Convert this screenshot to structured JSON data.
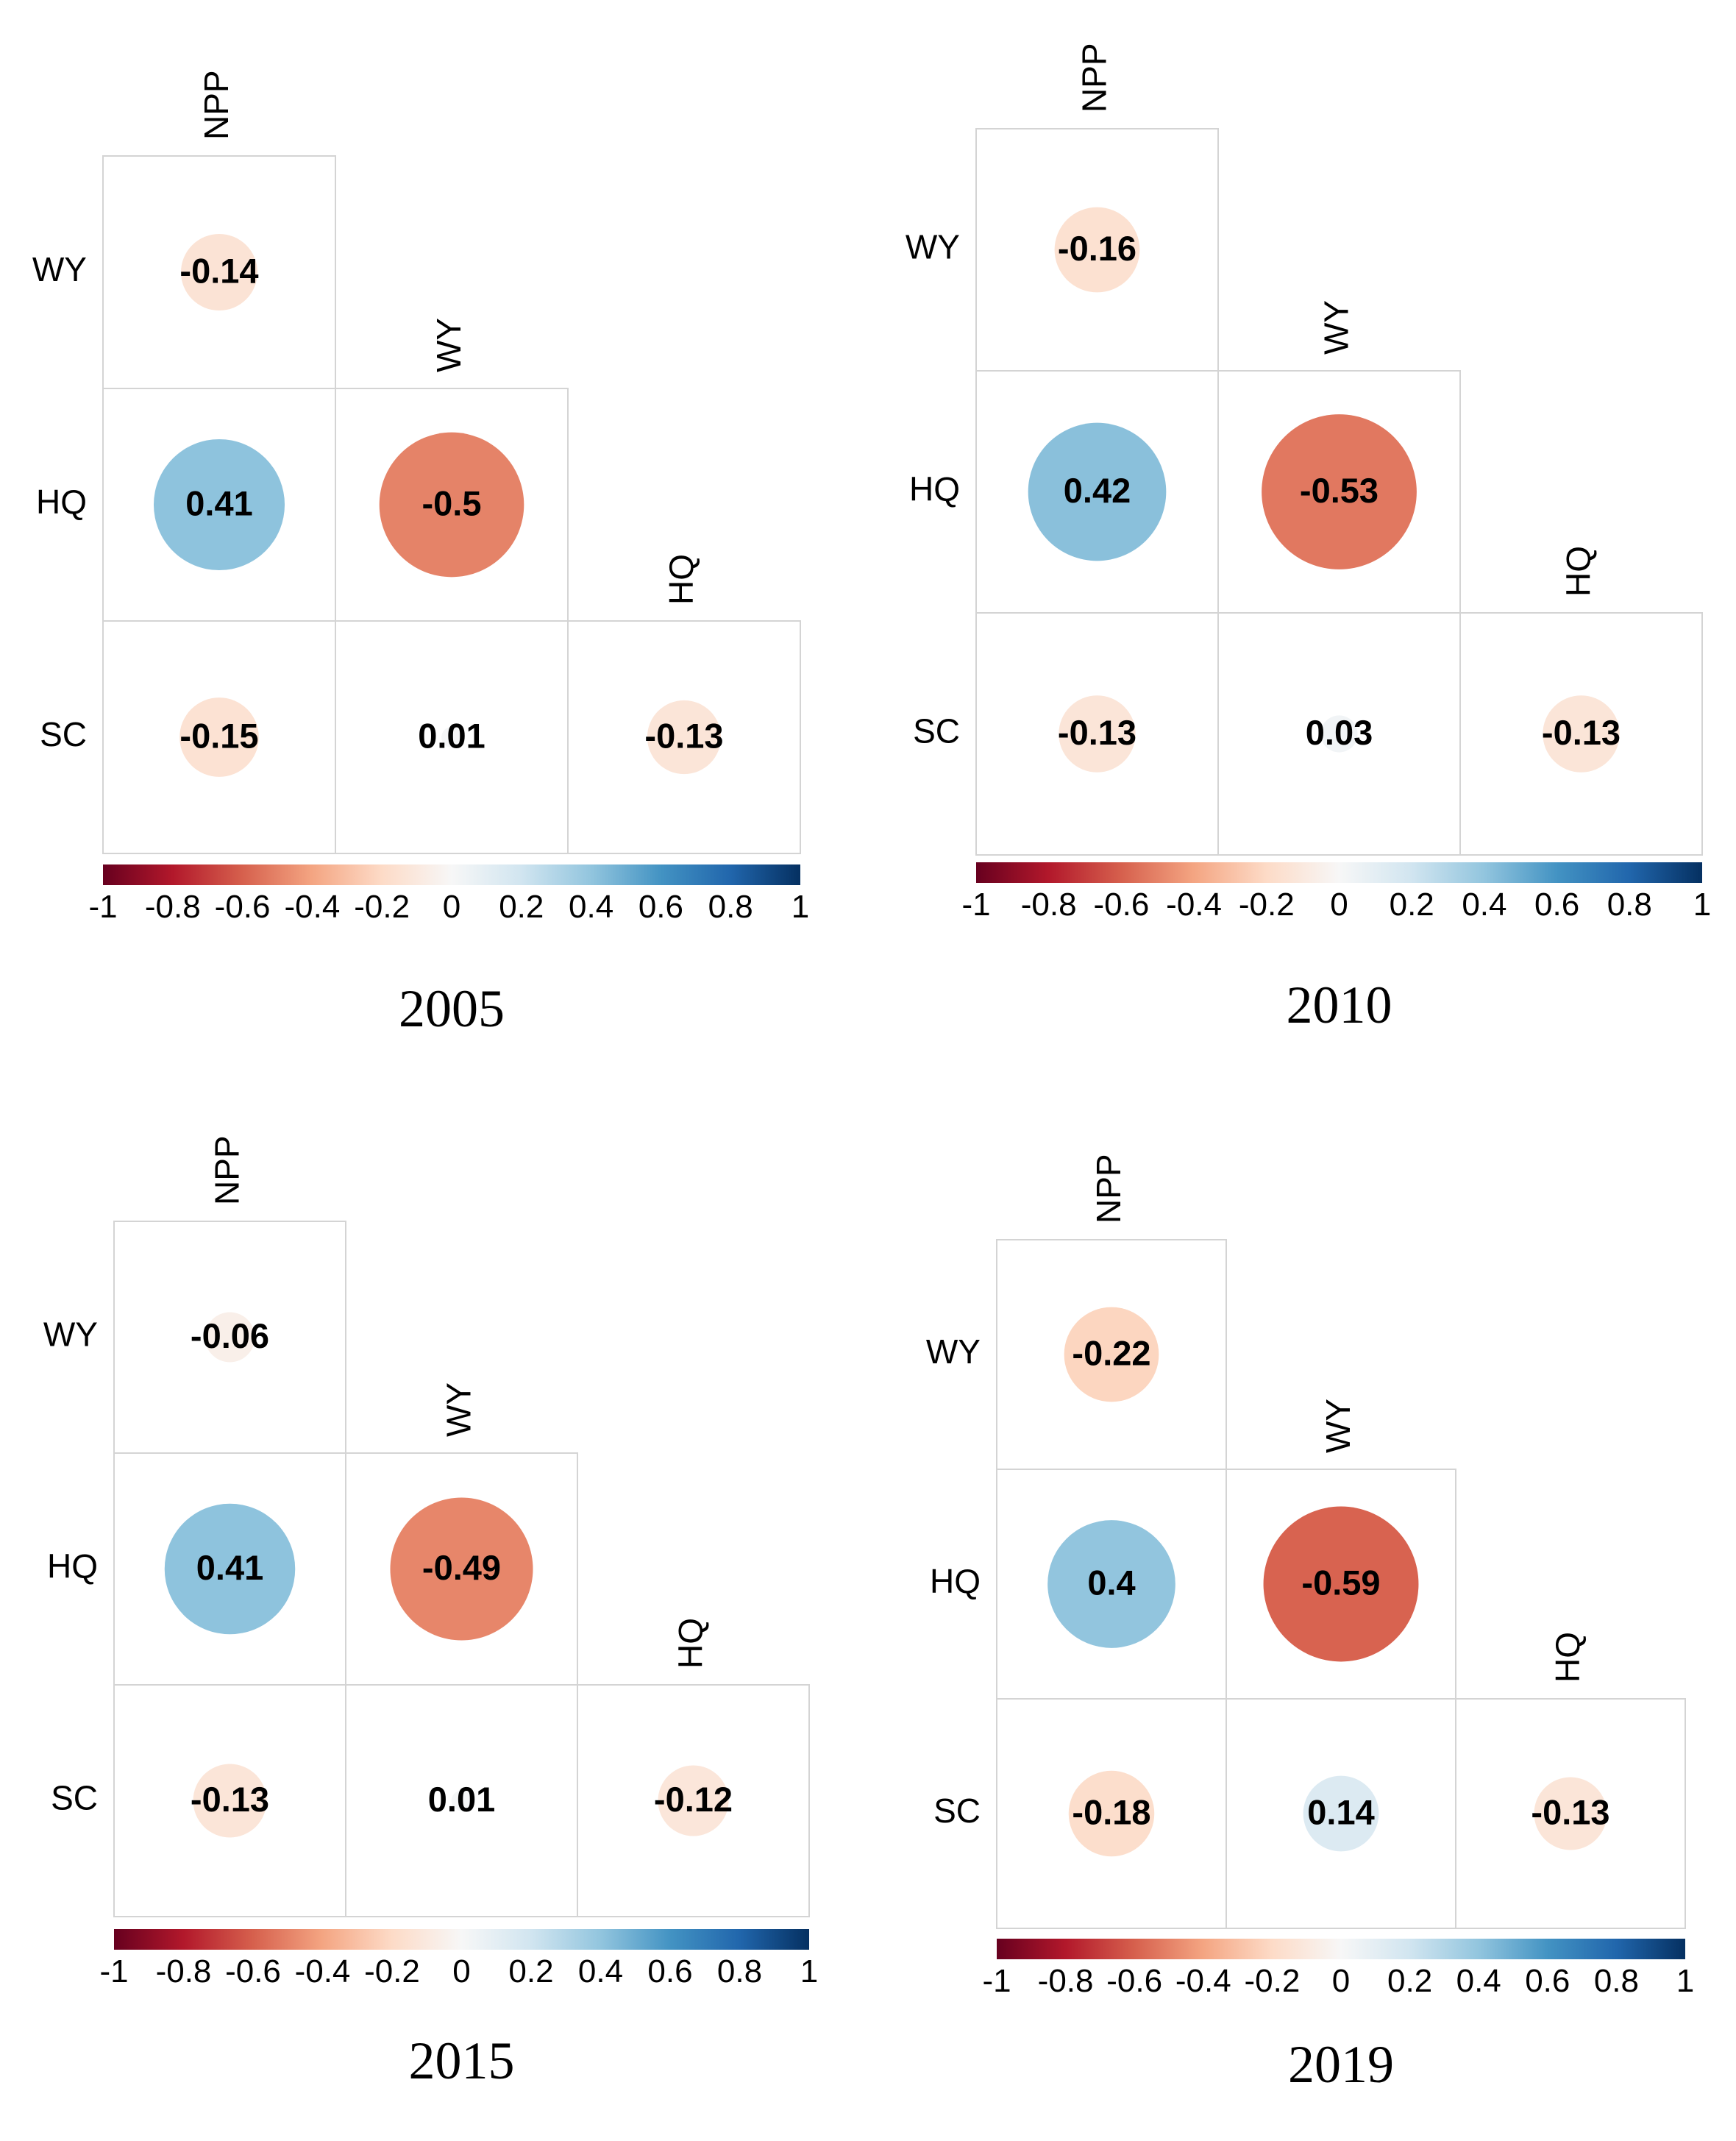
{
  "chart_data": [
    {
      "type": "heatmap",
      "title": "2005",
      "columns": [
        "NPP",
        "WY",
        "HQ"
      ],
      "rows": [
        "WY",
        "HQ",
        "SC"
      ],
      "values": [
        [
          "-0.14",
          null,
          null
        ],
        [
          "0.41",
          "-0.5",
          null
        ],
        [
          "-0.15",
          "0.01",
          "-0.13"
        ]
      ],
      "colorbar_ticks": [
        "-1",
        "-0.8",
        "-0.6",
        "-0.4",
        "-0.2",
        "0",
        "0.2",
        "0.4",
        "0.6",
        "0.8",
        "1"
      ],
      "colorbar_range": [
        -1,
        1
      ]
    },
    {
      "type": "heatmap",
      "title": "2010",
      "columns": [
        "NPP",
        "WY",
        "HQ"
      ],
      "rows": [
        "WY",
        "HQ",
        "SC"
      ],
      "values": [
        [
          "-0.16",
          null,
          null
        ],
        [
          "0.42",
          "-0.53",
          null
        ],
        [
          "-0.13",
          "0.03",
          "-0.13"
        ]
      ],
      "colorbar_ticks": [
        "-1",
        "-0.8",
        "-0.6",
        "-0.4",
        "-0.2",
        "0",
        "0.2",
        "0.4",
        "0.6",
        "0.8",
        "1"
      ],
      "colorbar_range": [
        -1,
        1
      ]
    },
    {
      "type": "heatmap",
      "title": "2015",
      "columns": [
        "NPP",
        "WY",
        "HQ"
      ],
      "rows": [
        "WY",
        "HQ",
        "SC"
      ],
      "values": [
        [
          "-0.06",
          null,
          null
        ],
        [
          "0.41",
          "-0.49",
          null
        ],
        [
          "-0.13",
          "0.01",
          "-0.12"
        ]
      ],
      "colorbar_ticks": [
        "-1",
        "-0.8",
        "-0.6",
        "-0.4",
        "-0.2",
        "0",
        "0.2",
        "0.4",
        "0.6",
        "0.8",
        "1"
      ],
      "colorbar_range": [
        -1,
        1
      ]
    },
    {
      "type": "heatmap",
      "title": "2019",
      "columns": [
        "NPP",
        "WY",
        "HQ"
      ],
      "rows": [
        "WY",
        "HQ",
        "SC"
      ],
      "values": [
        [
          "-0.22",
          null,
          null
        ],
        [
          "0.4",
          "-0.59",
          null
        ],
        [
          "-0.18",
          "0.14",
          "-0.13"
        ]
      ],
      "colorbar_ticks": [
        "-1",
        "-0.8",
        "-0.6",
        "-0.4",
        "-0.2",
        "0",
        "0.2",
        "0.4",
        "0.6",
        "0.8",
        "1"
      ],
      "colorbar_range": [
        -1,
        1
      ]
    }
  ],
  "colorscale": [
    "#67001f",
    "#b2182b",
    "#d6604d",
    "#f4a582",
    "#fddbc7",
    "#f7f7f7",
    "#d1e5f0",
    "#92c5de",
    "#4393c3",
    "#2166ac",
    "#053061"
  ]
}
